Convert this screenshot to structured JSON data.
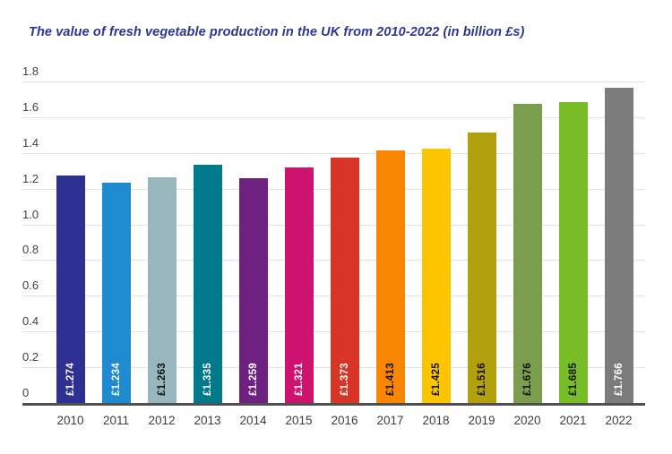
{
  "title": "The value of fresh vegetable production in the UK from 2010-2022 (in billion £s)",
  "colors": {
    "title_text": "#2c3792",
    "grid_line": "#e3e3e3",
    "axis_line": "#4f4f4f",
    "tick_text": "#424242",
    "year_text": "#3d3d3d"
  },
  "chart_data": {
    "type": "bar",
    "title": "The value of fresh vegetable production in the UK from 2010-2022 (in billion £s)",
    "categories": [
      "2010",
      "2011",
      "2012",
      "2013",
      "2014",
      "2015",
      "2016",
      "2017",
      "2018",
      "2019",
      "2020",
      "2021",
      "2022"
    ],
    "values": [
      1.274,
      1.234,
      1.263,
      1.335,
      1.259,
      1.321,
      1.373,
      1.413,
      1.425,
      1.516,
      1.676,
      1.685,
      1.766
    ],
    "value_labels": [
      "£1.274",
      "£1.234",
      "£1.263",
      "£1.335",
      "£1.259",
      "£1.321",
      "£1.373",
      "£1.413",
      "£1.425",
      "£1.516",
      "£1.676",
      "£1.685",
      "£1.766"
    ],
    "bar_colors": [
      "#2e3192",
      "#1e8bd1",
      "#97b7bd",
      "#00798c",
      "#6f2181",
      "#ce1270",
      "#d93526",
      "#f88600",
      "#fdc500",
      "#b3a00d",
      "#7b9e4d",
      "#76bd27",
      "#7b7b7b"
    ],
    "value_label_colors": [
      "#ffffff",
      "#ffffff",
      "#111111",
      "#ffffff",
      "#ffffff",
      "#ffffff",
      "#ffffff",
      "#111111",
      "#111111",
      "#111111",
      "#111111",
      "#111111",
      "#ffffff"
    ],
    "xlabel": "",
    "ylabel": "",
    "ylim": [
      0,
      1.8
    ],
    "ytick_step": 0.2,
    "ytick_labels": [
      "0",
      "0.2",
      "0.4",
      "0.6",
      "0.8",
      "1.0",
      "1.2",
      "1.4",
      "1.6",
      "1.8"
    ],
    "grid": "horizontal",
    "legend": "none",
    "value_label_orientation": "vertical-bottom"
  }
}
